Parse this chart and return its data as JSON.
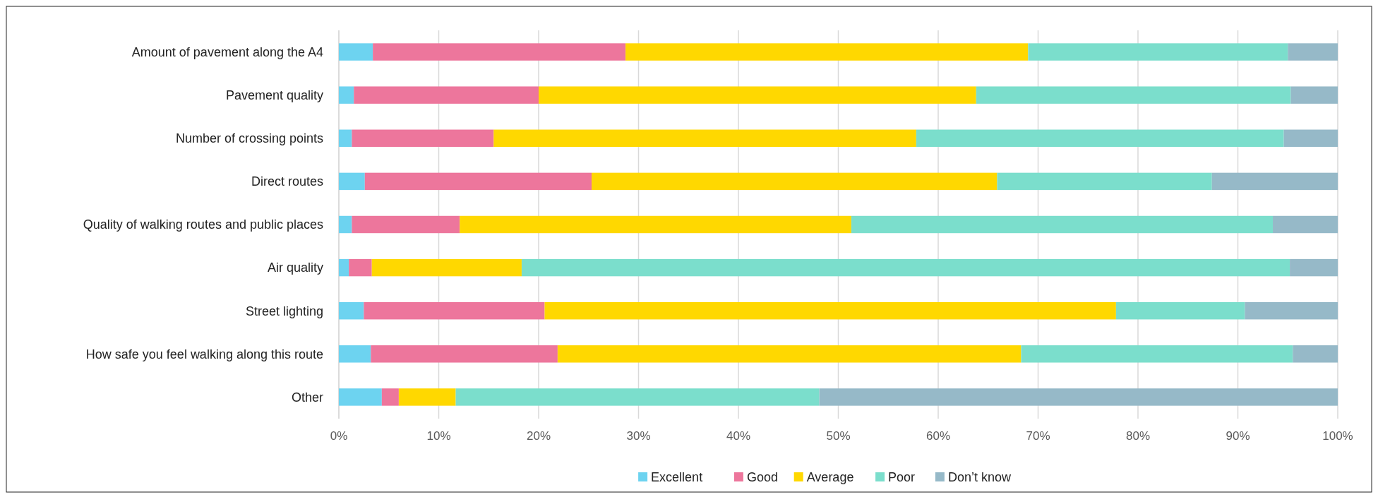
{
  "chart_data": {
    "type": "bar",
    "orientation": "horizontal",
    "stacked": true,
    "categories": [
      "Amount of pavement along the A4",
      "Pavement quality",
      "Number of crossing points",
      "Direct routes",
      "Quality of walking routes and public places",
      "Air quality",
      "Street lighting",
      "How safe you feel walking along this route",
      "Other"
    ],
    "series": [
      {
        "name": "Excellent",
        "color": "#6dd3f0",
        "values": [
          3.4,
          1.5,
          1.3,
          2.6,
          1.3,
          1.0,
          2.5,
          3.2,
          4.3
        ]
      },
      {
        "name": "Good",
        "color": "#ed769c",
        "values": [
          25.3,
          18.5,
          14.2,
          22.7,
          10.8,
          2.3,
          18.1,
          18.7,
          1.7
        ]
      },
      {
        "name": "Average",
        "color": "#ffd800",
        "values": [
          40.3,
          43.8,
          42.3,
          40.6,
          39.2,
          15.0,
          57.2,
          46.4,
          5.7
        ]
      },
      {
        "name": "Poor",
        "color": "#7bdecc",
        "values": [
          26.0,
          31.5,
          36.8,
          21.5,
          42.2,
          76.9,
          12.9,
          27.2,
          36.4
        ]
      },
      {
        "name": "Don’t know",
        "color": "#96b9c8",
        "values": [
          5.0,
          4.7,
          5.4,
          12.6,
          6.5,
          4.8,
          9.3,
          4.5,
          51.9
        ]
      }
    ],
    "xlim": [
      0,
      100
    ],
    "xticks": [
      {
        "value": 0,
        "label": "0%"
      },
      {
        "value": 10,
        "label": "10%"
      },
      {
        "value": 20,
        "label": "20%"
      },
      {
        "value": 30,
        "label": "30%"
      },
      {
        "value": 40,
        "label": "40%"
      },
      {
        "value": 50,
        "label": "50%"
      },
      {
        "value": 60,
        "label": "60%"
      },
      {
        "value": 70,
        "label": "70%"
      },
      {
        "value": 80,
        "label": "80%"
      },
      {
        "value": 90,
        "label": "90%"
      },
      {
        "value": 100,
        "label": "100%"
      }
    ],
    "grid": "x",
    "legend": "bottom"
  }
}
